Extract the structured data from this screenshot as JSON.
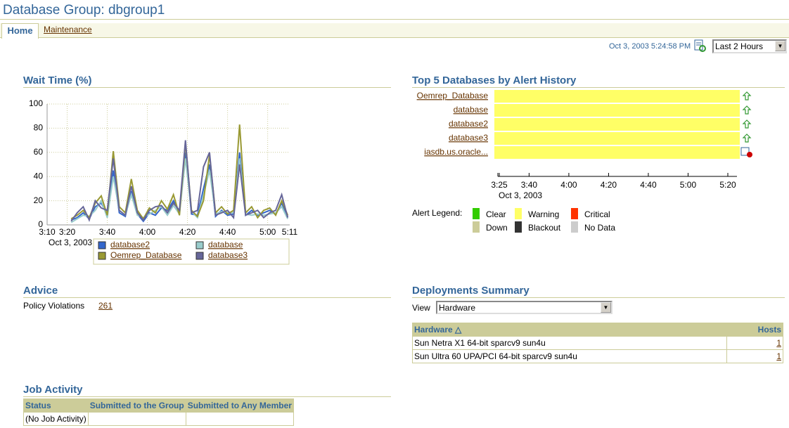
{
  "header": {
    "title": "Database Group: dbgroup1"
  },
  "tabs": [
    "Home",
    "Maintenance"
  ],
  "refresh": {
    "timestamp": "Oct 3, 2003 5:24:58 PM",
    "period": "Last 2 Hours"
  },
  "chart_data": [
    {
      "type": "line",
      "title": "Wait Time (%)",
      "x": [
        "3:22",
        "3:25",
        "3:28",
        "3:31",
        "3:34",
        "3:37",
        "3:40",
        "3:43",
        "3:46",
        "3:49",
        "3:52",
        "3:55",
        "3:58",
        "4:01",
        "4:04",
        "4:07",
        "4:10",
        "4:13",
        "4:16",
        "4:19",
        "4:22",
        "4:25",
        "4:28",
        "4:31",
        "4:34",
        "4:37",
        "4:40",
        "4:43",
        "4:46",
        "4:49",
        "4:52",
        "4:55",
        "4:58",
        "5:01",
        "5:04",
        "5:07",
        "5:10"
      ],
      "xticks": [
        "3:10",
        "3:20",
        "3:40",
        "4:00",
        "4:20",
        "4:40",
        "5:00",
        "5:11"
      ],
      "x_date": "Oct 3, 2003",
      "ylim": [
        0,
        100
      ],
      "yticks": [
        0,
        20,
        40,
        60,
        80,
        100
      ],
      "grid": true,
      "series": [
        {
          "name": "database2",
          "color": "#3366cc",
          "values": [
            4,
            6,
            10,
            5,
            15,
            18,
            9,
            45,
            10,
            7,
            28,
            9,
            3,
            10,
            8,
            14,
            12,
            20,
            10,
            60,
            9,
            8,
            30,
            50,
            7,
            12,
            8,
            9,
            60,
            8,
            12,
            8,
            10,
            12,
            9,
            18,
            7
          ]
        },
        {
          "name": "database",
          "color": "#99cccc",
          "values": [
            2,
            5,
            8,
            7,
            12,
            20,
            6,
            40,
            12,
            8,
            25,
            8,
            6,
            9,
            12,
            15,
            8,
            16,
            9,
            55,
            11,
            6,
            25,
            45,
            9,
            11,
            10,
            10,
            55,
            9,
            8,
            9,
            8,
            9,
            10,
            15,
            5
          ]
        },
        {
          "name": "Oemrep_Database",
          "color": "#999933",
          "values": [
            5,
            8,
            12,
            6,
            18,
            24,
            8,
            61,
            15,
            10,
            38,
            12,
            5,
            14,
            10,
            20,
            13,
            25,
            8,
            68,
            12,
            7,
            20,
            58,
            10,
            15,
            9,
            12,
            83,
            10,
            15,
            6,
            12,
            14,
            8,
            20,
            8
          ]
        },
        {
          "name": "database3",
          "color": "#666699",
          "values": [
            3,
            10,
            15,
            4,
            20,
            14,
            12,
            55,
            12,
            8,
            32,
            10,
            4,
            12,
            15,
            16,
            10,
            18,
            12,
            70,
            10,
            12,
            48,
            60,
            8,
            10,
            12,
            6,
            50,
            8,
            10,
            12,
            6,
            10,
            12,
            25,
            6
          ]
        }
      ]
    }
  ],
  "alert_history": {
    "title": "Top 5 Databases by Alert History",
    "rows": [
      {
        "name": "Oemrep_Database",
        "status": "Warning",
        "icon": "up"
      },
      {
        "name": "database",
        "status": "Warning",
        "icon": "up"
      },
      {
        "name": "database2",
        "status": "Warning",
        "icon": "up"
      },
      {
        "name": "database3",
        "status": "Warning",
        "icon": "up"
      },
      {
        "name": "iasdb.us.oracle...",
        "status": "Warning",
        "icon": "alert"
      }
    ],
    "xticks": [
      "3:25",
      "3:40",
      "4:00",
      "4:20",
      "4:40",
      "5:00",
      "5:20"
    ],
    "x_date": "Oct 3, 2003",
    "legend_title": "Alert Legend:",
    "legend": [
      {
        "label": "Clear",
        "color": "#33cc00"
      },
      {
        "label": "Warning",
        "color": "#ffff66"
      },
      {
        "label": "Critical",
        "color": "#ff3300"
      },
      {
        "label": "Down",
        "color": "#cccc99"
      },
      {
        "label": "Blackout",
        "color": "#333333"
      },
      {
        "label": "No Data",
        "color": "#cccccc"
      }
    ]
  },
  "advice": {
    "title": "Advice",
    "label": "Policy Violations",
    "value": 261
  },
  "deployments": {
    "title": "Deployments Summary",
    "view_label": "View",
    "view": "Hardware",
    "columns": [
      "Hardware",
      "Hosts"
    ],
    "rows": [
      [
        "Sun Netra X1 64-bit sparcv9 sun4u",
        1
      ],
      [
        "Sun Ultra 60 UPA/PCI 64-bit sparcv9 sun4u",
        1
      ]
    ]
  },
  "jobs": {
    "title": "Job Activity",
    "columns": [
      "Status",
      "Submitted to the Group",
      "Submitted to Any Member"
    ],
    "rows": [
      [
        "(No Job Activity)"
      ]
    ]
  }
}
